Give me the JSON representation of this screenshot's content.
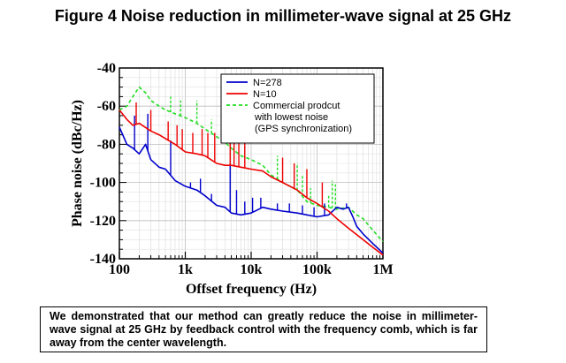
{
  "figure": {
    "title": "Figure 4 Noise reduction in millimeter-wave signal at 25 GHz",
    "caption": "We demonstrated that our method can greatly reduce the noise in millimeter-wave signal at 25 GHz by feedback control with the frequency comb, which is far away from the center wavelength."
  },
  "chart_data": {
    "type": "line",
    "xlabel": "Offset frequency (Hz)",
    "ylabel": "Phase noise (dBc/Hz)",
    "x_scale": "log",
    "xlim": [
      100,
      1000000
    ],
    "ylim": [
      -140,
      -40
    ],
    "x_ticks": [
      {
        "value": 100,
        "label": "100"
      },
      {
        "value": 1000,
        "label": "1k"
      },
      {
        "value": 10000,
        "label": "10k"
      },
      {
        "value": 100000,
        "label": "100k"
      },
      {
        "value": 1000000,
        "label": "1M"
      }
    ],
    "y_ticks": [
      -40,
      -60,
      -80,
      -100,
      -120,
      -140
    ],
    "grid": true,
    "legend_position": "top-right",
    "series": [
      {
        "name": "N=278",
        "color": "#0000cc",
        "style": "solid",
        "points": [
          [
            100,
            -71
          ],
          [
            130,
            -80
          ],
          [
            160,
            -82
          ],
          [
            200,
            -85
          ],
          [
            250,
            -80
          ],
          [
            300,
            -88
          ],
          [
            400,
            -92
          ],
          [
            500,
            -93
          ],
          [
            700,
            -99
          ],
          [
            1000,
            -102
          ],
          [
            1500,
            -104
          ],
          [
            2000,
            -107
          ],
          [
            3000,
            -112
          ],
          [
            4000,
            -113
          ],
          [
            5000,
            -116
          ],
          [
            7000,
            -117
          ],
          [
            10000,
            -116
          ],
          [
            15000,
            -113
          ],
          [
            20000,
            -114
          ],
          [
            30000,
            -115
          ],
          [
            50000,
            -116
          ],
          [
            70000,
            -117
          ],
          [
            100000,
            -118
          ],
          [
            150000,
            -117
          ],
          [
            200000,
            -113
          ],
          [
            250000,
            -114
          ],
          [
            300000,
            -113
          ],
          [
            350000,
            -118
          ],
          [
            400000,
            -123
          ],
          [
            500000,
            -127
          ],
          [
            700000,
            -132
          ],
          [
            1000000,
            -137
          ]
        ],
        "spurs": [
          [
            170,
            -65
          ],
          [
            270,
            -64
          ],
          [
            600,
            -78
          ],
          [
            1200,
            -100
          ],
          [
            1700,
            -98
          ],
          [
            2500,
            -106
          ],
          [
            4800,
            -90
          ],
          [
            6000,
            -104
          ],
          [
            8000,
            -110
          ],
          [
            10500,
            -108
          ],
          [
            14000,
            -108
          ],
          [
            25000,
            -111
          ],
          [
            38000,
            -111
          ],
          [
            60000,
            -112
          ],
          [
            90000,
            -113
          ],
          [
            130000,
            -111
          ],
          [
            280000,
            -111
          ]
        ]
      },
      {
        "name": "N=10",
        "color": "#ee0000",
        "style": "solid",
        "points": [
          [
            100,
            -62
          ],
          [
            130,
            -67
          ],
          [
            160,
            -70
          ],
          [
            200,
            -69
          ],
          [
            300,
            -73
          ],
          [
            400,
            -75
          ],
          [
            500,
            -77
          ],
          [
            700,
            -80
          ],
          [
            1000,
            -84
          ],
          [
            1500,
            -85
          ],
          [
            2000,
            -86
          ],
          [
            3000,
            -90
          ],
          [
            4000,
            -91
          ],
          [
            5000,
            -91
          ],
          [
            7000,
            -92
          ],
          [
            10000,
            -93
          ],
          [
            15000,
            -94
          ],
          [
            20000,
            -97
          ],
          [
            30000,
            -100
          ],
          [
            50000,
            -104
          ],
          [
            70000,
            -108
          ],
          [
            100000,
            -111
          ],
          [
            150000,
            -115
          ],
          [
            200000,
            -119
          ],
          [
            300000,
            -124
          ],
          [
            500000,
            -130
          ],
          [
            700000,
            -134
          ],
          [
            1000000,
            -138
          ]
        ],
        "spurs": [
          [
            180,
            -58
          ],
          [
            300,
            -62
          ],
          [
            550,
            -68
          ],
          [
            750,
            -70
          ],
          [
            900,
            -72
          ],
          [
            1300,
            -74
          ],
          [
            1800,
            -72
          ],
          [
            2200,
            -74
          ],
          [
            2800,
            -74
          ],
          [
            4800,
            -68
          ],
          [
            5500,
            -74
          ],
          [
            6500,
            -68
          ],
          [
            8000,
            -76
          ],
          [
            30000,
            -87
          ],
          [
            45000,
            -90
          ],
          [
            70000,
            -93
          ],
          [
            120000,
            -100
          ]
        ]
      },
      {
        "name": "Commercial prodcut with lowest noise (GPS synchronization)",
        "legend_lines": [
          "Commercial prodcut",
          "with lowest noise",
          "(GPS synchronization)"
        ],
        "color": "#22dd22",
        "style": "dashed",
        "points": [
          [
            100,
            -62
          ],
          [
            130,
            -60
          ],
          [
            160,
            -55
          ],
          [
            200,
            -50
          ],
          [
            250,
            -53
          ],
          [
            300,
            -57
          ],
          [
            400,
            -60
          ],
          [
            500,
            -62
          ],
          [
            700,
            -64
          ],
          [
            1000,
            -66
          ],
          [
            1500,
            -69
          ],
          [
            2000,
            -72
          ],
          [
            3000,
            -76
          ],
          [
            4000,
            -79
          ],
          [
            5000,
            -82
          ],
          [
            7000,
            -86
          ],
          [
            10000,
            -88
          ],
          [
            15000,
            -91
          ],
          [
            20000,
            -96
          ],
          [
            30000,
            -100
          ],
          [
            50000,
            -104
          ],
          [
            70000,
            -110
          ],
          [
            100000,
            -112
          ],
          [
            150000,
            -113
          ],
          [
            200000,
            -114
          ],
          [
            300000,
            -113
          ],
          [
            400000,
            -117
          ],
          [
            500000,
            -119
          ],
          [
            700000,
            -125
          ],
          [
            1000000,
            -131
          ]
        ],
        "spurs": [
          [
            600,
            -55
          ],
          [
            850,
            -57
          ],
          [
            1500,
            -57
          ],
          [
            2500,
            -67
          ],
          [
            8000,
            -79
          ],
          [
            25000,
            -86
          ],
          [
            50000,
            -90
          ],
          [
            60000,
            -96
          ],
          [
            80000,
            -103
          ],
          [
            150000,
            -107
          ],
          [
            170000,
            -99
          ],
          [
            190000,
            -101
          ]
        ]
      }
    ]
  }
}
